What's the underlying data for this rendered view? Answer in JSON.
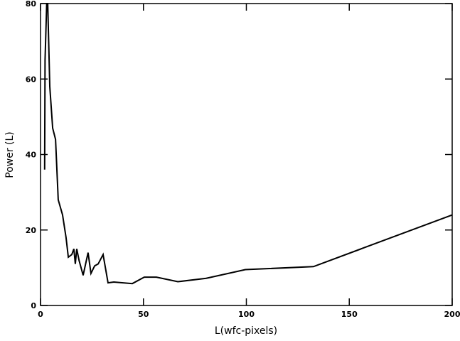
{
  "chart_data": {
    "type": "line",
    "x_label": "L(wfc-pixels)",
    "y_label": "Power (L)",
    "xlim": [
      0,
      200
    ],
    "ylim": [
      0,
      80
    ],
    "xticks": [
      0,
      50,
      100,
      150,
      200
    ],
    "yticks": [
      0,
      20,
      40,
      60,
      80
    ],
    "series": [
      {
        "color": "#000000",
        "x": [
          2,
          2.2,
          3,
          3.5,
          4.5,
          5.9,
          7.3,
          8.6,
          10.7,
          12.4,
          13.5,
          15.2,
          16.2,
          16.9,
          17.6,
          18.7,
          20.7,
          23.1,
          24.5,
          26.3,
          28,
          30.4,
          32.8,
          35.6,
          44.6,
          50.4,
          56.3,
          66.7,
          80.5,
          99.5,
          132.6,
          200
        ],
        "values": [
          36,
          65,
          80,
          80,
          58,
          47,
          44,
          28,
          24,
          18,
          12.8,
          13.5,
          15,
          11,
          15,
          12,
          8,
          14,
          8.5,
          10.5,
          11,
          13.5,
          6,
          6.2,
          5.8,
          7.5,
          7.5,
          6.3,
          7.2,
          9.5,
          10.3,
          24
        ]
      }
    ]
  }
}
